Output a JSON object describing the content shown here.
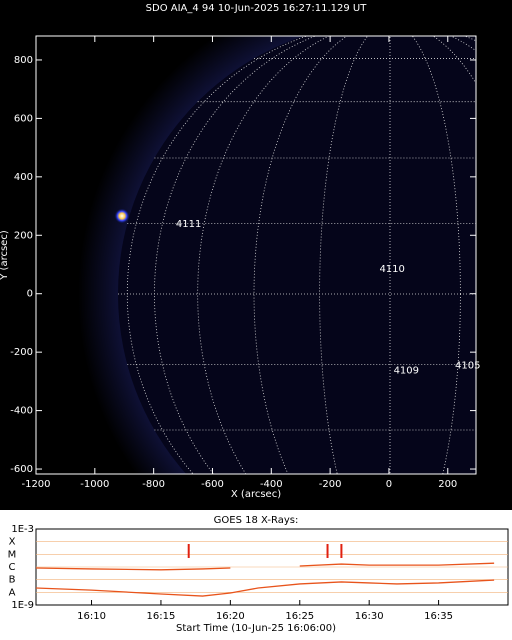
{
  "chart_data": [
    {
      "type": "image",
      "title": "SDO AIA_4 94 10-Jun-2025 16:27:11.129 UT",
      "xlabel": "X (arcsec)",
      "ylabel": "Y (arcsec)",
      "xlim": [
        -1200,
        296
      ],
      "ylim": [
        -617,
        882
      ],
      "xticks": [
        -1200,
        -1000,
        -800,
        -600,
        -400,
        -200,
        0,
        200
      ],
      "yticks": [
        -600,
        -400,
        -200,
        0,
        200,
        400,
        600,
        800
      ],
      "annotations": [
        {
          "text": "4111",
          "x": -681,
          "y": 238
        },
        {
          "text": "4110",
          "x": 11,
          "y": 84
        },
        {
          "text": "4109",
          "x": 59,
          "y": -262
        },
        {
          "text": "4105",
          "x": 268,
          "y": -245
        }
      ]
    },
    {
      "type": "line",
      "title": "GOES 18 X-Rays:",
      "xlabel": "Start Time (10-Jun-25 16:06:00)",
      "log_scale": true,
      "xlim": [
        "16:06",
        "16:40"
      ],
      "xticks": [
        "16:10",
        "16:15",
        "16:20",
        "16:25",
        "16:30",
        "16:35"
      ],
      "ylim": [
        1e-09,
        0.001
      ],
      "yticks": [
        {
          "value": 0.001,
          "label": "1E-3"
        },
        {
          "value": 1e-09,
          "label": "1E-9"
        }
      ],
      "class_labels": [
        {
          "value": 0.0001,
          "label": "X"
        },
        {
          "value": 1e-05,
          "label": "M"
        },
        {
          "value": 1e-06,
          "label": "C"
        },
        {
          "value": 1e-07,
          "label": "B"
        },
        {
          "value": 1e-08,
          "label": "A"
        }
      ],
      "x": [
        "16:06",
        "16:10",
        "16:15",
        "16:18",
        "16:20",
        "16:22",
        "16:25",
        "16:28",
        "16:30",
        "16:32",
        "16:35",
        "16:39"
      ],
      "series": [
        {
          "color": "#e8541c",
          "values": [
            8.3e-07,
            7e-07,
            6e-07,
            7e-07,
            8.3e-07,
            null,
            1.2e-06,
            1.7e-06,
            1.4e-06,
            1.4e-06,
            1.4e-06,
            2e-06
          ]
        },
        {
          "color": "#e8541c",
          "values": [
            2.2e-08,
            1.5e-08,
            7.4e-09,
            5.1e-09,
            8.9e-09,
            2.2e-08,
            4.6e-08,
            6.6e-08,
            5.5e-08,
            4.6e-08,
            5.5e-08,
            9.3e-08
          ]
        }
      ],
      "event_times": [
        "16:17",
        "16:27",
        "16:28"
      ],
      "event_color": "#e02010"
    }
  ]
}
